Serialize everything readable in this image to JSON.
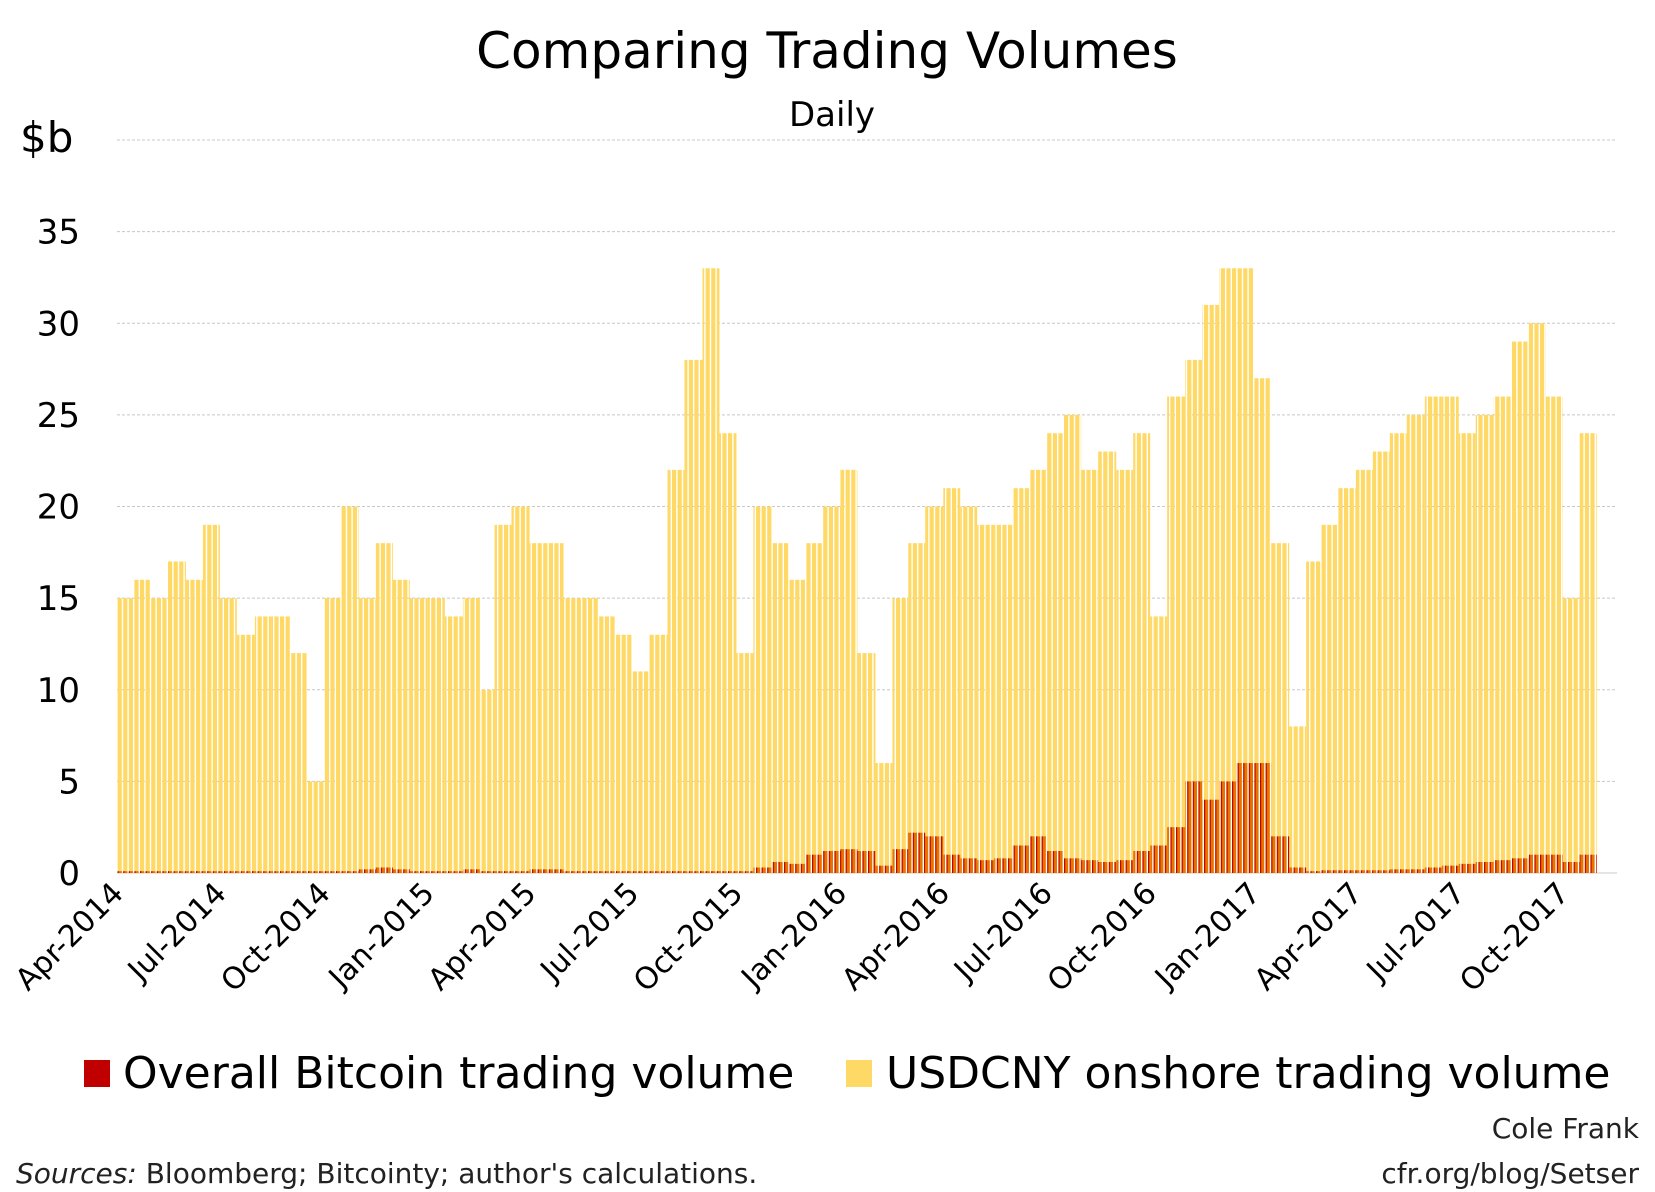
{
  "chart_data": {
    "type": "bar",
    "title": "Comparing Trading Volumes",
    "subtitle": "Daily",
    "ylabel": "$b",
    "ylim": [
      0,
      40
    ],
    "yticks": [
      0,
      5,
      10,
      15,
      20,
      25,
      30,
      35
    ],
    "xlim": [
      "2014-04-01",
      "2017-11-18"
    ],
    "xticks": [
      {
        "date": "2014-04-01",
        "label": "Apr-2014"
      },
      {
        "date": "2014-07-01",
        "label": "Jul-2014"
      },
      {
        "date": "2014-10-01",
        "label": "Oct-2014"
      },
      {
        "date": "2015-01-01",
        "label": "Jan-2015"
      },
      {
        "date": "2015-04-01",
        "label": "Apr-2015"
      },
      {
        "date": "2015-07-01",
        "label": "Jul-2015"
      },
      {
        "date": "2015-10-01",
        "label": "Oct-2015"
      },
      {
        "date": "2016-01-01",
        "label": "Jan-2016"
      },
      {
        "date": "2016-04-01",
        "label": "Apr-2016"
      },
      {
        "date": "2016-07-01",
        "label": "Jul-2016"
      },
      {
        "date": "2016-10-01",
        "label": "Oct-2016"
      },
      {
        "date": "2017-01-01",
        "label": "Jan-2017"
      },
      {
        "date": "2017-04-01",
        "label": "Apr-2017"
      },
      {
        "date": "2017-07-01",
        "label": "Jul-2017"
      },
      {
        "date": "2017-10-01",
        "label": "Oct-2017"
      }
    ],
    "grid": true,
    "legend_position": "bottom",
    "x": [
      "2014-04-01",
      "2014-04-16",
      "2014-05-01",
      "2014-05-16",
      "2014-06-01",
      "2014-06-16",
      "2014-07-01",
      "2014-07-16",
      "2014-08-01",
      "2014-08-16",
      "2014-09-01",
      "2014-09-16",
      "2014-10-01",
      "2014-10-16",
      "2014-11-01",
      "2014-11-16",
      "2014-12-01",
      "2014-12-16",
      "2015-01-01",
      "2015-01-16",
      "2015-02-01",
      "2015-02-16",
      "2015-03-01",
      "2015-03-16",
      "2015-04-01",
      "2015-04-16",
      "2015-05-01",
      "2015-05-16",
      "2015-06-01",
      "2015-06-16",
      "2015-07-01",
      "2015-07-16",
      "2015-08-01",
      "2015-08-16",
      "2015-09-01",
      "2015-09-16",
      "2015-10-01",
      "2015-10-16",
      "2015-11-01",
      "2015-11-16",
      "2015-12-01",
      "2015-12-16",
      "2016-01-01",
      "2016-01-16",
      "2016-02-01",
      "2016-02-16",
      "2016-03-01",
      "2016-03-16",
      "2016-04-01",
      "2016-04-16",
      "2016-05-01",
      "2016-05-16",
      "2016-06-01",
      "2016-06-16",
      "2016-07-01",
      "2016-07-16",
      "2016-08-01",
      "2016-08-16",
      "2016-09-01",
      "2016-09-16",
      "2016-10-01",
      "2016-10-16",
      "2016-11-01",
      "2016-11-16",
      "2016-12-01",
      "2016-12-16",
      "2017-01-01",
      "2017-01-16",
      "2017-02-01",
      "2017-02-16",
      "2017-03-01",
      "2017-03-16",
      "2017-04-01",
      "2017-04-16",
      "2017-05-01",
      "2017-05-16",
      "2017-06-01",
      "2017-06-16",
      "2017-07-01",
      "2017-07-16",
      "2017-08-01",
      "2017-08-16",
      "2017-09-01",
      "2017-09-16",
      "2017-10-01",
      "2017-10-16"
    ],
    "series": [
      {
        "name": "USDCNY onshore trading volume",
        "color": "#ffd966",
        "values": [
          15,
          16,
          15,
          17,
          16,
          19,
          15,
          13,
          14,
          14,
          12,
          5,
          15,
          20,
          15,
          18,
          16,
          15,
          15,
          14,
          15,
          10,
          19,
          20,
          18,
          18,
          15,
          15,
          14,
          13,
          11,
          13,
          22,
          28,
          33,
          24,
          12,
          20,
          18,
          16,
          18,
          20,
          22,
          12,
          6,
          15,
          18,
          20,
          21,
          20,
          19,
          19,
          21,
          22,
          24,
          25,
          22,
          23,
          22,
          24,
          14,
          26,
          28,
          31,
          33,
          33,
          27,
          18,
          8,
          17,
          19,
          21,
          22,
          23,
          24,
          25,
          26,
          26,
          24,
          25,
          26,
          29,
          30,
          26,
          15,
          24
        ]
      },
      {
        "name": "Overall Bitcoin trading volume",
        "color": "#c00000",
        "values": [
          0.1,
          0.1,
          0.1,
          0.1,
          0.1,
          0.1,
          0.1,
          0.1,
          0.1,
          0.1,
          0.1,
          0.1,
          0.1,
          0.1,
          0.2,
          0.3,
          0.2,
          0.1,
          0.1,
          0.1,
          0.2,
          0.1,
          0.1,
          0.1,
          0.2,
          0.2,
          0.1,
          0.1,
          0.1,
          0.1,
          0.1,
          0.1,
          0.1,
          0.1,
          0.1,
          0.1,
          0.1,
          0.3,
          0.6,
          0.5,
          1.0,
          1.2,
          1.3,
          1.2,
          0.4,
          1.3,
          2.2,
          2.0,
          1.0,
          0.8,
          0.7,
          0.8,
          1.5,
          2.0,
          1.2,
          0.8,
          0.7,
          0.6,
          0.7,
          1.2,
          1.5,
          2.5,
          5,
          4,
          5,
          6,
          6,
          2,
          0.3,
          0.1,
          0.15,
          0.15,
          0.15,
          0.15,
          0.2,
          0.2,
          0.3,
          0.4,
          0.5,
          0.6,
          0.7,
          0.8,
          1.0,
          1.0,
          0.6,
          1.0
        ]
      }
    ]
  },
  "credits": {
    "author": "Cole Frank",
    "site": "cfr.org/blog/Setser",
    "sources_label": "Sources:",
    "sources_text": " Bloomberg; Bitcointy; author's calculations."
  }
}
